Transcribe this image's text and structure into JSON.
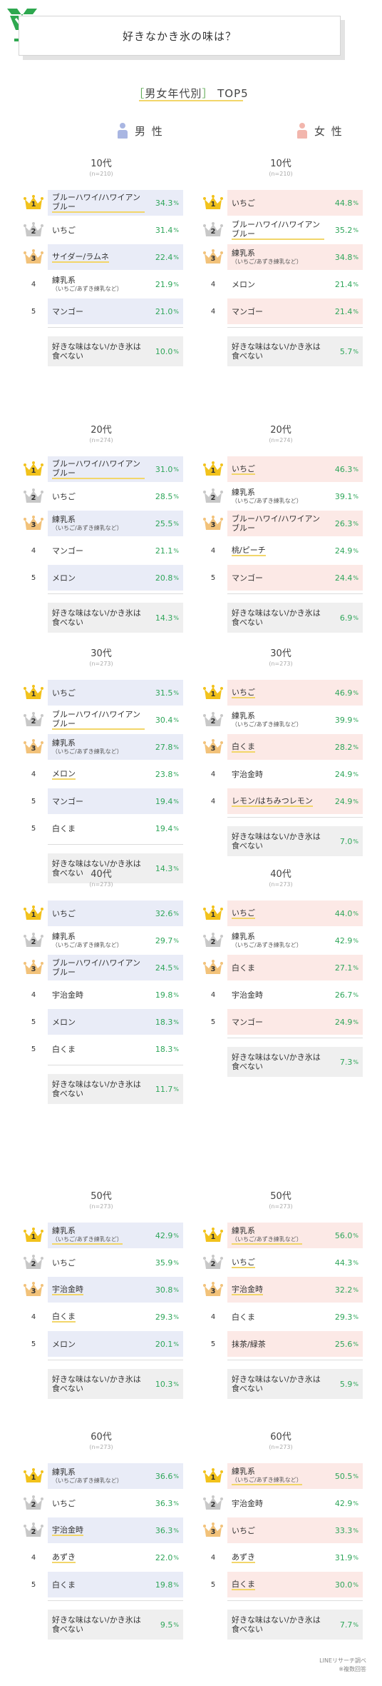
{
  "header": {
    "title": "好きなかき氷の味は？",
    "subtitle_open": "［",
    "subtitle_text": "男女年代別",
    "subtitle_close": "］",
    "subtitle_tail": "TOP5"
  },
  "gender_labels": {
    "male": "男 性",
    "female": "女 性"
  },
  "colors": {
    "male_row": "#e9ecf7",
    "female_row": "#fce9e6",
    "value_green": "#2fa65a",
    "gold_crown": "#f2c21c",
    "silver_crown": "#c8c8c8",
    "bronze_crown": "#f2c27a",
    "underline": "#f2d66a",
    "logo_green": "#2ea84f"
  },
  "footer": {
    "source": "LINEリサーチ調べ",
    "note": "※複数回答"
  },
  "chart_data": [
    {
      "type": "table",
      "gender": "male",
      "title": "10代",
      "n": "(n=210)",
      "items": [
        {
          "rank": "1",
          "label": "ブルーハワイ/ハワイアンブルー",
          "sub": "",
          "value": 34.3,
          "underline": true
        },
        {
          "rank": "2",
          "label": "いちご",
          "sub": "",
          "value": 31.4,
          "underline": false
        },
        {
          "rank": "3",
          "label": "サイダー/ラムネ",
          "sub": "",
          "value": 22.4,
          "underline": true
        },
        {
          "rank": "4",
          "label": "練乳系",
          "sub": "（いちご/あずき練乳など）",
          "value": 21.9,
          "underline": false
        },
        {
          "rank": "5",
          "label": "マンゴー",
          "sub": "",
          "value": 21.0,
          "underline": false
        }
      ],
      "none": {
        "label": "好きな味はない/かき氷は食べない",
        "value": 10.0
      }
    },
    {
      "type": "table",
      "gender": "female",
      "title": "10代",
      "n": "(n=210)",
      "items": [
        {
          "rank": "1",
          "label": "いちご",
          "sub": "",
          "value": 44.8,
          "underline": false
        },
        {
          "rank": "2",
          "label": "ブルーハワイ/ハワイアンブルー",
          "sub": "",
          "value": 35.2,
          "underline": true
        },
        {
          "rank": "3",
          "label": "練乳系",
          "sub": "（いちご/あずき練乳など）",
          "value": 34.8,
          "underline": false
        },
        {
          "rank": "4",
          "label": "メロン",
          "sub": "",
          "value": 21.4,
          "underline": false
        },
        {
          "rank": "4",
          "label": "マンゴー",
          "sub": "",
          "value": 21.4,
          "underline": false
        }
      ],
      "none": {
        "label": "好きな味はない/かき氷は食べない",
        "value": 5.7
      }
    },
    {
      "type": "table",
      "gender": "male",
      "title": "20代",
      "n": "(n=274)",
      "items": [
        {
          "rank": "1",
          "label": "ブルーハワイ/ハワイアンブルー",
          "sub": "",
          "value": 31.0,
          "underline": true
        },
        {
          "rank": "2",
          "label": "いちご",
          "sub": "",
          "value": 28.5,
          "underline": false
        },
        {
          "rank": "3",
          "label": "練乳系",
          "sub": "（いちご/あずき練乳など）",
          "value": 25.5,
          "underline": false
        },
        {
          "rank": "4",
          "label": "マンゴー",
          "sub": "",
          "value": 21.1,
          "underline": false
        },
        {
          "rank": "5",
          "label": "メロン",
          "sub": "",
          "value": 20.8,
          "underline": false
        }
      ],
      "none": {
        "label": "好きな味はない/かき氷は食べない",
        "value": 14.3
      }
    },
    {
      "type": "table",
      "gender": "female",
      "title": "20代",
      "n": "(n=274)",
      "items": [
        {
          "rank": "1",
          "label": "いちご",
          "sub": "",
          "value": 46.3,
          "underline": true
        },
        {
          "rank": "2",
          "label": "練乳系",
          "sub": "（いちご/あずき練乳など）",
          "value": 39.1,
          "underline": false
        },
        {
          "rank": "3",
          "label": "ブルーハワイ/ハワイアンブルー",
          "sub": "",
          "value": 26.3,
          "underline": false
        },
        {
          "rank": "4",
          "label": "桃/ピーチ",
          "sub": "",
          "value": 24.9,
          "underline": true
        },
        {
          "rank": "5",
          "label": "マンゴー",
          "sub": "",
          "value": 24.4,
          "underline": false
        }
      ],
      "none": {
        "label": "好きな味はない/かき氷は食べない",
        "value": 6.9
      }
    },
    {
      "type": "table",
      "gender": "male",
      "title": "30代",
      "n": "(n=273)",
      "items": [
        {
          "rank": "1",
          "label": "いちご",
          "sub": "",
          "value": 31.5,
          "underline": false
        },
        {
          "rank": "2",
          "label": "ブルーハワイ/ハワイアンブルー",
          "sub": "",
          "value": 30.4,
          "underline": true
        },
        {
          "rank": "3",
          "label": "練乳系",
          "sub": "（いちご/あずき練乳など）",
          "value": 27.8,
          "underline": false
        },
        {
          "rank": "4",
          "label": "メロン",
          "sub": "",
          "value": 23.8,
          "underline": true
        },
        {
          "rank": "5",
          "label": "マンゴー",
          "sub": "",
          "value": 19.4,
          "underline": false
        },
        {
          "rank": "5",
          "label": "白くま",
          "sub": "",
          "value": 19.4,
          "underline": false
        }
      ],
      "none": {
        "label": "好きな味はない/かき氷は食べない",
        "value": 14.3
      }
    },
    {
      "type": "table",
      "gender": "female",
      "title": "30代",
      "n": "(n=273)",
      "items": [
        {
          "rank": "1",
          "label": "いちご",
          "sub": "",
          "value": 46.9,
          "underline": true
        },
        {
          "rank": "2",
          "label": "練乳系",
          "sub": "（いちご/あずき練乳など）",
          "value": 39.9,
          "underline": false
        },
        {
          "rank": "3",
          "label": "白くま",
          "sub": "",
          "value": 28.2,
          "underline": true
        },
        {
          "rank": "4",
          "label": "宇治金時",
          "sub": "",
          "value": 24.9,
          "underline": false
        },
        {
          "rank": "4",
          "label": "レモン/はちみつレモン",
          "sub": "",
          "value": 24.9,
          "underline": true
        }
      ],
      "none": {
        "label": "好きな味はない/かき氷は食べない",
        "value": 7.0
      }
    },
    {
      "type": "table",
      "gender": "male",
      "title": "40代",
      "n": "(n=273)",
      "items": [
        {
          "rank": "1",
          "label": "いちご",
          "sub": "",
          "value": 32.6,
          "underline": false
        },
        {
          "rank": "2",
          "label": "練乳系",
          "sub": "（いちご/あずき練乳など）",
          "value": 29.7,
          "underline": false
        },
        {
          "rank": "3",
          "label": "ブルーハワイ/ハワイアンブルー",
          "sub": "",
          "value": 24.5,
          "underline": false
        },
        {
          "rank": "4",
          "label": "宇治金時",
          "sub": "",
          "value": 19.8,
          "underline": false
        },
        {
          "rank": "5",
          "label": "メロン",
          "sub": "",
          "value": 18.3,
          "underline": false
        },
        {
          "rank": "5",
          "label": "白くま",
          "sub": "",
          "value": 18.3,
          "underline": false
        }
      ],
      "none": {
        "label": "好きな味はない/かき氷は食べない",
        "value": 11.7
      }
    },
    {
      "type": "table",
      "gender": "female",
      "title": "40代",
      "n": "(n=273)",
      "items": [
        {
          "rank": "1",
          "label": "いちご",
          "sub": "",
          "value": 44.0,
          "underline": true
        },
        {
          "rank": "2",
          "label": "練乳系",
          "sub": "（いちご/あずき練乳など）",
          "value": 42.9,
          "underline": false
        },
        {
          "rank": "3",
          "label": "白くま",
          "sub": "",
          "value": 27.1,
          "underline": false
        },
        {
          "rank": "4",
          "label": "宇治金時",
          "sub": "",
          "value": 26.7,
          "underline": false
        },
        {
          "rank": "5",
          "label": "マンゴー",
          "sub": "",
          "value": 24.9,
          "underline": false
        }
      ],
      "none": {
        "label": "好きな味はない/かき氷は食べない",
        "value": 7.3
      }
    },
    {
      "type": "table",
      "gender": "male",
      "title": "50代",
      "n": "(n=273)",
      "items": [
        {
          "rank": "1",
          "label": "練乳系",
          "sub": "（いちご/あずき練乳など）",
          "value": 42.9,
          "underline": true
        },
        {
          "rank": "2",
          "label": "いちご",
          "sub": "",
          "value": 35.9,
          "underline": false
        },
        {
          "rank": "3",
          "label": "宇治金時",
          "sub": "",
          "value": 30.8,
          "underline": true
        },
        {
          "rank": "4",
          "label": "白くま",
          "sub": "",
          "value": 29.3,
          "underline": true
        },
        {
          "rank": "5",
          "label": "メロン",
          "sub": "",
          "value": 20.1,
          "underline": false
        }
      ],
      "none": {
        "label": "好きな味はない/かき氷は食べない",
        "value": 10.3
      }
    },
    {
      "type": "table",
      "gender": "female",
      "title": "50代",
      "n": "(n=273)",
      "items": [
        {
          "rank": "1",
          "label": "練乳系",
          "sub": "（いちご/あずき練乳など）",
          "value": 56.0,
          "underline": true
        },
        {
          "rank": "2",
          "label": "いちご",
          "sub": "",
          "value": 44.3,
          "underline": true
        },
        {
          "rank": "3",
          "label": "宇治金時",
          "sub": "",
          "value": 32.2,
          "underline": true
        },
        {
          "rank": "4",
          "label": "白くま",
          "sub": "",
          "value": 29.3,
          "underline": false
        },
        {
          "rank": "5",
          "label": "抹茶/緑茶",
          "sub": "",
          "value": 25.6,
          "underline": false
        }
      ],
      "none": {
        "label": "好きな味はない/かき氷は食べない",
        "value": 5.9
      }
    },
    {
      "type": "table",
      "gender": "male",
      "title": "60代",
      "n": "(n=273)",
      "items": [
        {
          "rank": "1",
          "label": "練乳系",
          "sub": "（いちご/あずき練乳など）",
          "value": 36.6,
          "underline": false
        },
        {
          "rank": "2",
          "label": "いちご",
          "sub": "",
          "value": 36.3,
          "underline": false
        },
        {
          "rank": "2",
          "label": "宇治金時",
          "sub": "",
          "value": 36.3,
          "underline": true
        },
        {
          "rank": "4",
          "label": "あずき",
          "sub": "",
          "value": 22.0,
          "underline": true
        },
        {
          "rank": "5",
          "label": "白くま",
          "sub": "",
          "value": 19.8,
          "underline": false
        }
      ],
      "none": {
        "label": "好きな味はない/かき氷は食べない",
        "value": 9.5
      }
    },
    {
      "type": "table",
      "gender": "female",
      "title": "60代",
      "n": "(n=273)",
      "items": [
        {
          "rank": "1",
          "label": "練乳系",
          "sub": "（いちご/あずき練乳など）",
          "value": 50.5,
          "underline": true
        },
        {
          "rank": "2",
          "label": "宇治金時",
          "sub": "",
          "value": 42.9,
          "underline": false
        },
        {
          "rank": "3",
          "label": "いちご",
          "sub": "",
          "value": 33.3,
          "underline": false
        },
        {
          "rank": "4",
          "label": "あずき",
          "sub": "",
          "value": 31.9,
          "underline": true
        },
        {
          "rank": "5",
          "label": "白くま",
          "sub": "",
          "value": 30.0,
          "underline": true
        }
      ],
      "none": {
        "label": "好きな味はない/かき氷は食べない",
        "value": 7.7
      }
    }
  ]
}
